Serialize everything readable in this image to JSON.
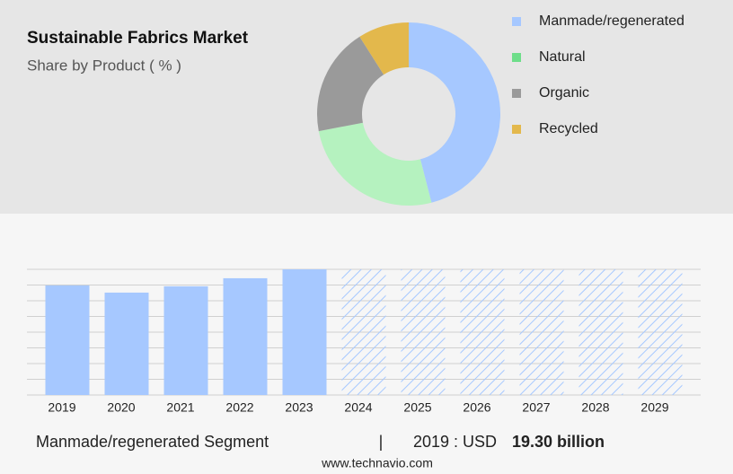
{
  "header": {
    "title": "Sustainable Fabrics Market",
    "subtitle": "Share by Product ( % )"
  },
  "chart_data": [
    {
      "type": "donut",
      "categories": [
        "Manmade/regenerated",
        "Natural",
        "Organic",
        "Recycled"
      ],
      "values": [
        46,
        26,
        19,
        9
      ],
      "colors": [
        "#a6c8ff",
        "#b5f2bf",
        "#9a9a9a",
        "#e3b84c"
      ],
      "legend_colors": [
        "#a6c8ff",
        "#6ede8a",
        "#9a9a9a",
        "#e3b84c"
      ]
    },
    {
      "type": "bar",
      "categories": [
        "2019",
        "2020",
        "2021",
        "2022",
        "2023",
        "2024",
        "2025",
        "2026",
        "2027",
        "2028",
        "2029"
      ],
      "values": [
        19.3,
        18.03,
        19.14,
        20.56,
        22.13,
        null,
        null,
        null,
        null,
        null,
        null
      ],
      "color": "#a6c8ff",
      "ylim": [
        0,
        22.13
      ],
      "yticks": [
        0,
        2.77,
        5.53,
        8.3,
        11.07,
        13.83,
        16.6,
        19.37,
        22.13
      ],
      "grid": true
    }
  ],
  "footer": {
    "segment": "Manmade/regenerated Segment",
    "separator": "|",
    "year_label": "2019 : USD",
    "value_label": "19.30 billion",
    "site": "www.technavio.com"
  }
}
